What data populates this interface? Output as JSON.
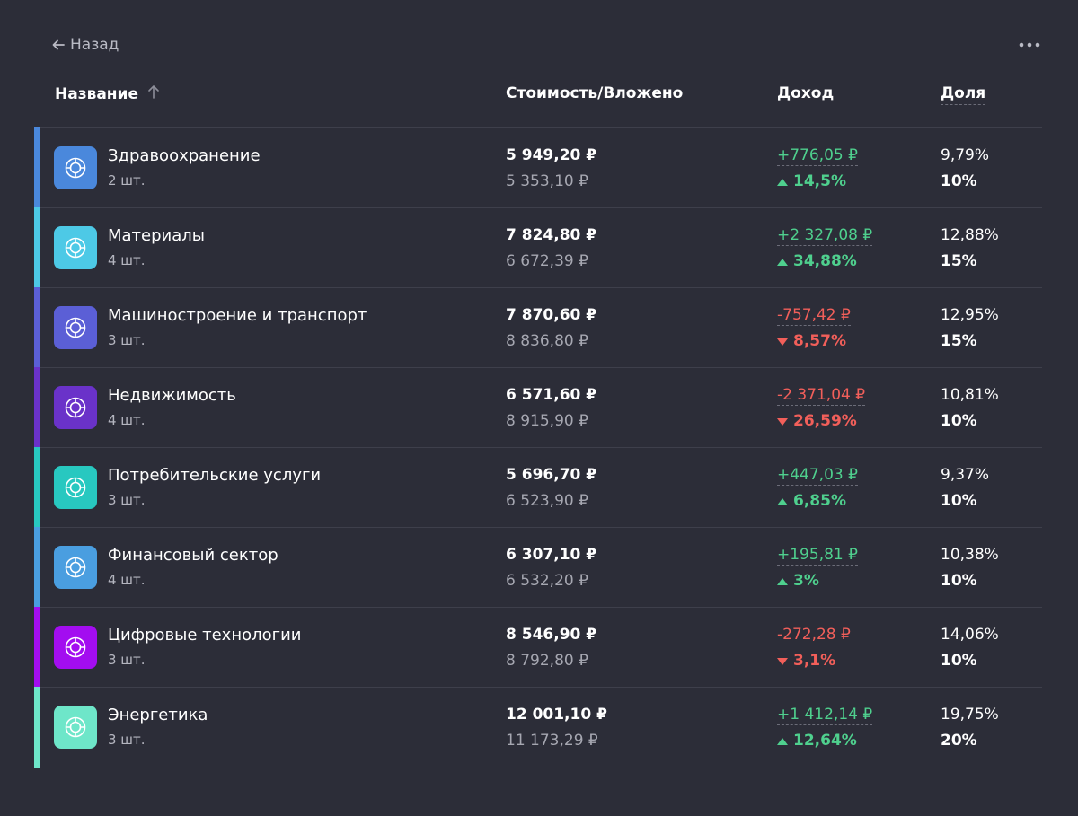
{
  "nav": {
    "back_label": "Назад",
    "back_icon": "arrow-left-icon",
    "more_icon": "more-horizontal-icon"
  },
  "header": {
    "name": "Название",
    "sort_icon": "arrow-up-icon",
    "value": "Стоимость/Вложено",
    "income": "Доход",
    "share": "Доля"
  },
  "colors": {
    "background": "#2c2d38",
    "positive": "#4fd08e",
    "negative": "#f25f5a"
  },
  "rows": [
    {
      "name": "Здравоохранение",
      "qty": "2 шт.",
      "value": "5 949,20 ₽",
      "invested": "5 353,10 ₽",
      "income": "+776,05 ₽",
      "percent": "14,5%",
      "trend": "up",
      "share": "9,79%",
      "target": "10%",
      "color": "#4a88dc"
    },
    {
      "name": "Материалы",
      "qty": "4 шт.",
      "value": "7 824,80 ₽",
      "invested": "6 672,39 ₽",
      "income": "+2 327,08 ₽",
      "percent": "34,88%",
      "trend": "up",
      "share": "12,88%",
      "target": "15%",
      "color": "#4dc9e6"
    },
    {
      "name": "Машиностроение и транспорт",
      "qty": "3 шт.",
      "value": "7 870,60 ₽",
      "invested": "8 836,80 ₽",
      "income": "-757,42 ₽",
      "percent": "8,57%",
      "trend": "down",
      "share": "12,95%",
      "target": "15%",
      "color": "#5b5fd6"
    },
    {
      "name": "Недвижимость",
      "qty": "4 шт.",
      "value": "6 571,60 ₽",
      "invested": "8 915,90 ₽",
      "income": "-2 371,04 ₽",
      "percent": "26,59%",
      "trend": "down",
      "share": "10,81%",
      "target": "10%",
      "color": "#6a32c9"
    },
    {
      "name": "Потребительские услуги",
      "qty": "3 шт.",
      "value": "5 696,70 ₽",
      "invested": "6 523,90 ₽",
      "income": "+447,03 ₽",
      "percent": "6,85%",
      "trend": "up",
      "share": "9,37%",
      "target": "10%",
      "color": "#28c8c0"
    },
    {
      "name": "Финансовый сектор",
      "qty": "4 шт.",
      "value": "6 307,10 ₽",
      "invested": "6 532,20 ₽",
      "income": "+195,81 ₽",
      "percent": "3%",
      "trend": "up",
      "share": "10,38%",
      "target": "10%",
      "color": "#4a9ee0"
    },
    {
      "name": "Цифровые технологии",
      "qty": "3 шт.",
      "value": "8 546,90 ₽",
      "invested": "8 792,80 ₽",
      "income": "-272,28 ₽",
      "percent": "3,1%",
      "trend": "down",
      "share": "14,06%",
      "target": "10%",
      "color": "#a30df0"
    },
    {
      "name": "Энергетика",
      "qty": "3 шт.",
      "value": "12 001,10 ₽",
      "invested": "11 173,29 ₽",
      "income": "+1 412,14 ₽",
      "percent": "12,64%",
      "trend": "up",
      "share": "19,75%",
      "target": "20%",
      "color": "#6ee6c9"
    }
  ]
}
